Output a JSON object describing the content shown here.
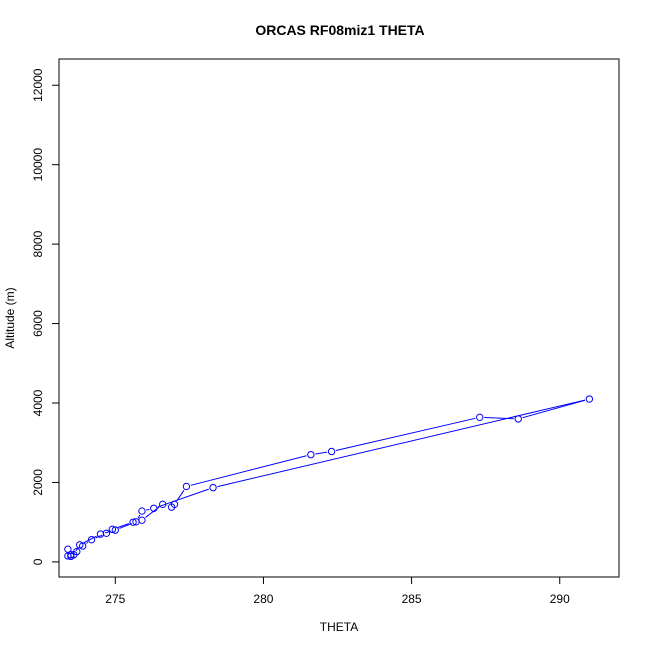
{
  "chart_data": {
    "type": "line",
    "title": "ORCAS RF08miz1 THETA",
    "xlabel": "THETA",
    "ylabel": "Altitude (m)",
    "xlim": [
      273.1,
      292.0
    ],
    "ylim": [
      -380,
      12660
    ],
    "x_ticks": [
      275,
      280,
      285,
      290
    ],
    "y_ticks": [
      0,
      2000,
      4000,
      6000,
      8000,
      10000,
      12000
    ],
    "grid": false,
    "legend": "none",
    "series_color": "#0000ff",
    "marker": "open-circle",
    "series": [
      {
        "x": [
          273.4,
          273.5,
          273.7,
          273.9,
          274.2,
          274.7,
          274.9,
          275.6,
          275.9,
          276.6,
          276.9,
          277.0,
          277.4,
          281.6,
          282.3,
          287.3,
          288.6,
          291.0,
          278.3,
          276.3,
          275.9,
          275.7,
          275.0,
          274.5,
          273.8,
          273.6,
          273.5,
          273.4
        ],
        "y": [
          150,
          180,
          260,
          400,
          560,
          720,
          820,
          1000,
          1050,
          1450,
          1380,
          1450,
          1900,
          2700,
          2780,
          3640,
          3600,
          4100,
          1870,
          1350,
          1280,
          1010,
          800,
          700,
          430,
          180,
          140,
          320
        ]
      }
    ]
  }
}
